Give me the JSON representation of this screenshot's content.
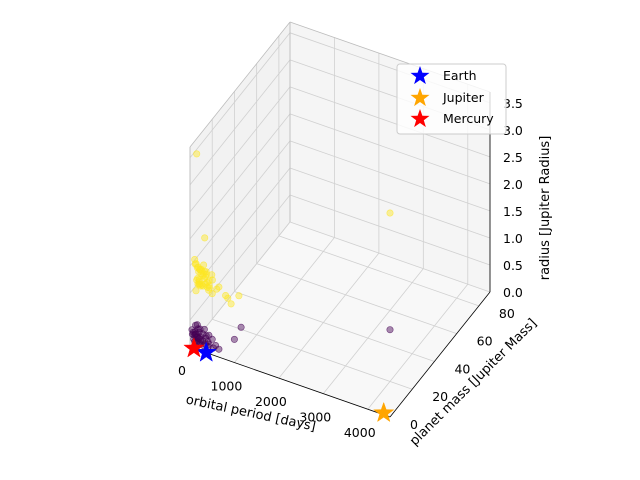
{
  "chart_data": {
    "type": "scatter",
    "projection": "3d",
    "xlabel": "orbital period [days]",
    "ylabel": "planet mass [Jupiter Mass]",
    "zlabel": "radius [Jupiter Radius]",
    "xlim": [
      0,
      4500
    ],
    "ylim": [
      0,
      90
    ],
    "zlim": [
      0,
      3.7
    ],
    "xticks": [
      0,
      1000,
      2000,
      3000,
      4000
    ],
    "yticks": [
      0,
      20,
      40,
      60,
      80
    ],
    "zticks": [
      "0.0",
      "0.5",
      "1.0",
      "1.5",
      "2.0",
      "2.5",
      "3.0",
      "3.5"
    ],
    "grid": true,
    "legend_position": "upper-right",
    "colors": {
      "small_planets": "#440154",
      "large_planets": "#fde725"
    },
    "series": [
      {
        "kind": "cloud",
        "color": "#fde725",
        "points": [
          [
            30,
            3,
            1.55
          ],
          [
            35,
            4,
            1.45
          ],
          [
            40,
            5,
            1.35
          ],
          [
            45,
            6,
            1.25
          ],
          [
            50,
            4,
            1.15
          ],
          [
            55,
            5,
            1.05
          ],
          [
            60,
            3,
            0.98
          ],
          [
            65,
            6,
            1.3
          ],
          [
            70,
            2,
            1.5
          ],
          [
            75,
            7,
            1.2
          ],
          [
            80,
            5,
            1.1
          ],
          [
            85,
            4,
            1.4
          ],
          [
            90,
            6,
            1.0
          ],
          [
            95,
            3,
            1.22
          ],
          [
            100,
            5,
            1.33
          ],
          [
            110,
            4,
            1.18
          ],
          [
            120,
            6,
            1.28
          ],
          [
            130,
            3,
            1.12
          ],
          [
            140,
            5,
            1.06
          ],
          [
            150,
            4,
            1.38
          ],
          [
            160,
            6,
            1.24
          ],
          [
            170,
            2,
            1.16
          ],
          [
            180,
            5,
            1.44
          ],
          [
            190,
            4,
            1.08
          ],
          [
            200,
            6,
            1.2
          ],
          [
            210,
            3,
            1.3
          ],
          [
            220,
            5,
            1.1
          ],
          [
            230,
            4,
            1.36
          ],
          [
            240,
            6,
            1.02
          ],
          [
            250,
            3,
            1.26
          ],
          [
            260,
            5,
            1.14
          ],
          [
            270,
            4,
            1.32
          ],
          [
            280,
            6,
            1.06
          ],
          [
            290,
            3,
            1.4
          ],
          [
            300,
            5,
            1.18
          ],
          [
            320,
            4,
            1.04
          ],
          [
            340,
            6,
            1.28
          ],
          [
            360,
            3,
            1.12
          ],
          [
            380,
            5,
            1.22
          ],
          [
            400,
            4,
            1.0
          ],
          [
            130,
            8,
            1.85
          ],
          [
            300,
            12,
            0.85
          ],
          [
            500,
            6,
            1.1
          ],
          [
            600,
            8,
            0.92
          ],
          [
            700,
            6,
            0.95
          ],
          [
            800,
            5,
            0.9
          ],
          [
            900,
            8,
            1.0
          ],
          [
            100,
            2,
            3.55
          ],
          [
            3000,
            60,
            1.8
          ]
        ]
      },
      {
        "kind": "cloud",
        "color": "#440154",
        "points": [
          [
            20,
            1,
            0.3
          ],
          [
            30,
            1,
            0.22
          ],
          [
            40,
            2,
            0.18
          ],
          [
            50,
            1,
            0.26
          ],
          [
            60,
            1,
            0.14
          ],
          [
            70,
            2,
            0.2
          ],
          [
            80,
            1,
            0.1
          ],
          [
            90,
            1,
            0.28
          ],
          [
            100,
            2,
            0.16
          ],
          [
            110,
            1,
            0.24
          ],
          [
            120,
            1,
            0.08
          ],
          [
            130,
            2,
            0.32
          ],
          [
            140,
            1,
            0.12
          ],
          [
            150,
            1,
            0.2
          ],
          [
            160,
            2,
            0.06
          ],
          [
            170,
            1,
            0.18
          ],
          [
            180,
            1,
            0.3
          ],
          [
            190,
            2,
            0.14
          ],
          [
            200,
            1,
            0.22
          ],
          [
            220,
            1,
            0.1
          ],
          [
            240,
            2,
            0.26
          ],
          [
            260,
            1,
            0.16
          ],
          [
            280,
            1,
            0.08
          ],
          [
            300,
            2,
            0.2
          ],
          [
            320,
            1,
            0.12
          ],
          [
            340,
            1,
            0.28
          ],
          [
            360,
            2,
            0.06
          ],
          [
            380,
            1,
            0.18
          ],
          [
            400,
            1,
            0.14
          ],
          [
            450,
            2,
            0.22
          ],
          [
            500,
            1,
            0.1
          ],
          [
            550,
            1,
            0.16
          ],
          [
            600,
            2,
            0.08
          ],
          [
            50,
            3,
            0.34
          ],
          [
            90,
            3,
            0.36
          ],
          [
            150,
            3,
            0.3
          ],
          [
            250,
            3,
            0.32
          ],
          [
            350,
            3,
            0.24
          ],
          [
            850,
            12,
            0.3
          ],
          [
            750,
            10,
            0.1
          ],
          [
            3500,
            40,
            0.3
          ]
        ]
      },
      {
        "name": "Earth",
        "kind": "star",
        "color": "#0000ff",
        "points": [
          [
            365,
            0,
            0
          ]
        ]
      },
      {
        "name": "Jupiter",
        "kind": "star",
        "color": "#ffa500",
        "points": [
          [
            4333,
            1,
            0
          ]
        ]
      },
      {
        "name": "Mercury",
        "kind": "star",
        "color": "#ff0000",
        "points": [
          [
            88,
            0,
            0
          ]
        ]
      }
    ]
  }
}
